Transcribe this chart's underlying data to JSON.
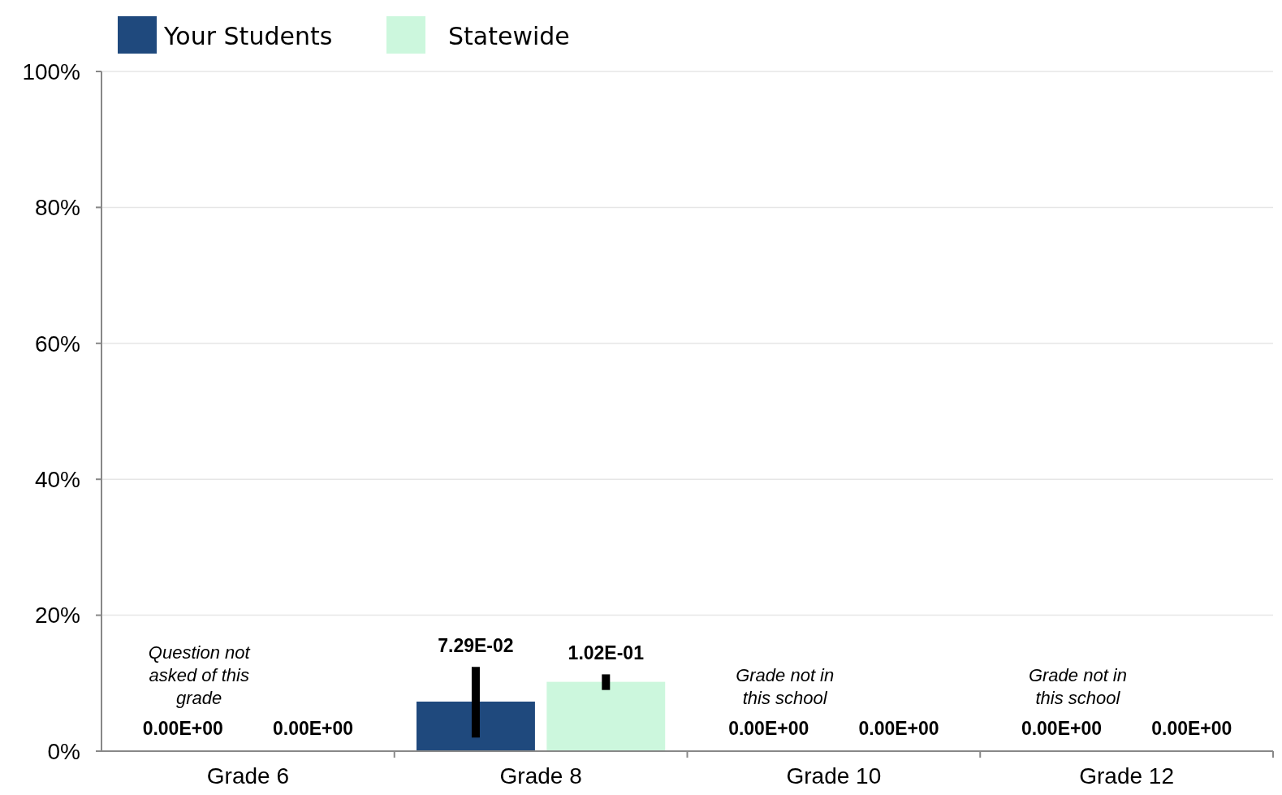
{
  "chart_data": {
    "type": "bar",
    "categories": [
      "Grade 6",
      "Grade 8",
      "Grade 10",
      "Grade 12"
    ],
    "series": [
      {
        "name": "Your Students",
        "color": "#1f497d",
        "values": [
          0,
          0.0729,
          0,
          0
        ],
        "errors": [
          null,
          [
            0.02,
            0.124
          ],
          null,
          null
        ],
        "value_labels": [
          "0.00E+00",
          "7.29E-02",
          "0.00E+00",
          "0.00E+00"
        ]
      },
      {
        "name": "Statewide",
        "color": "#ccf7dd",
        "values": [
          0,
          0.102,
          0,
          0
        ],
        "errors": [
          null,
          [
            0.09,
            0.113
          ],
          null,
          null
        ],
        "value_labels": [
          "0.00E+00",
          "1.02E-01",
          "0.00E+00",
          "0.00E+00"
        ]
      }
    ],
    "ylim": [
      0,
      1
    ],
    "yticks": [
      {
        "value": 0,
        "label": "0%"
      },
      {
        "value": 0.2,
        "label": "20%"
      },
      {
        "value": 0.4,
        "label": "40%"
      },
      {
        "value": 0.6,
        "label": "60%"
      },
      {
        "value": 0.8,
        "label": "80%"
      },
      {
        "value": 1,
        "label": "100%"
      }
    ],
    "grid": "y",
    "legend": "top left",
    "annotations": [
      "Question not asked of this grade",
      "Grade not in this school",
      "Grade not in this school"
    ]
  }
}
